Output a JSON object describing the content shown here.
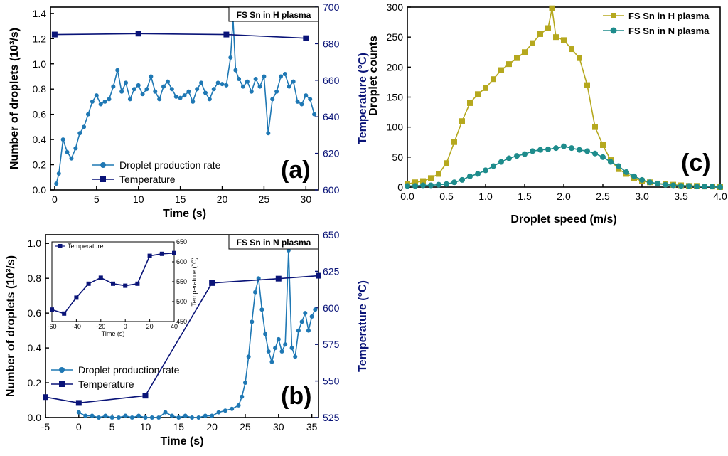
{
  "chart_data": [
    {
      "id": "a",
      "type": "line",
      "panel_label": "(a)",
      "title_box": "FS Sn in H plasma",
      "xlabel": "Time (s)",
      "ylabel_left": "Number of droplets (10³/s)",
      "ylabel_right": "Temperature (°C)",
      "xlim": [
        -0.5,
        31.5
      ],
      "ylim_left": [
        0,
        1.45
      ],
      "ylim_right": [
        600,
        700
      ],
      "xticks": [
        "0",
        "5",
        "10",
        "15",
        "20",
        "25",
        "30"
      ],
      "yticks_left": [
        "0.0",
        "0.2",
        "0.4",
        "0.6",
        "0.8",
        "1.0",
        "1.2",
        "1.4"
      ],
      "yticks_right": [
        "600",
        "620",
        "640",
        "660",
        "680",
        "700"
      ],
      "legend": [
        "Droplet production rate",
        "Temperature"
      ],
      "series": [
        {
          "name": "Droplet production rate",
          "axis": "left",
          "color": "#1f78b4",
          "x": [
            0.2,
            0.5,
            1,
            1.5,
            2,
            2.5,
            3,
            3.5,
            4,
            4.5,
            5,
            5.5,
            6,
            6.5,
            7,
            7.5,
            8,
            8.5,
            9,
            9.5,
            10,
            10.5,
            11,
            11.5,
            12,
            12.5,
            13,
            13.5,
            14,
            14.5,
            15,
            15.5,
            16,
            16.5,
            17,
            17.5,
            18,
            18.5,
            19,
            19.5,
            20,
            20.5,
            21,
            21.3,
            21.6,
            22,
            22.5,
            23,
            23.5,
            24,
            24.5,
            25,
            25.5,
            26,
            26.5,
            27,
            27.5,
            28,
            28.5,
            29,
            29.5,
            30,
            30.5,
            31
          ],
          "y": [
            0.05,
            0.13,
            0.4,
            0.3,
            0.25,
            0.33,
            0.45,
            0.5,
            0.6,
            0.7,
            0.75,
            0.68,
            0.7,
            0.72,
            0.82,
            0.95,
            0.78,
            0.85,
            0.72,
            0.8,
            0.83,
            0.76,
            0.8,
            0.9,
            0.78,
            0.72,
            0.82,
            0.86,
            0.8,
            0.74,
            0.73,
            0.75,
            0.78,
            0.7,
            0.8,
            0.85,
            0.77,
            0.72,
            0.8,
            0.85,
            0.84,
            0.83,
            1.05,
            1.36,
            0.95,
            0.88,
            0.82,
            0.86,
            0.78,
            0.88,
            0.82,
            0.9,
            0.45,
            0.72,
            0.78,
            0.9,
            0.92,
            0.82,
            0.86,
            0.7,
            0.68,
            0.75,
            0.72,
            0.6
          ]
        },
        {
          "name": "Temperature",
          "axis": "right",
          "color": "#0a1478",
          "x": [
            0,
            10,
            20.5,
            30
          ],
          "y": [
            685,
            685.5,
            685,
            683
          ]
        }
      ]
    },
    {
      "id": "b",
      "type": "line",
      "panel_label": "(b)",
      "title_box": "FS Sn in N plasma",
      "xlabel": "Time (s)",
      "ylabel_left": "Number of droplets (10³/s)",
      "ylabel_right": "Temperature (°C)",
      "xlim": [
        -5,
        36
      ],
      "ylim_left": [
        0,
        1.05
      ],
      "ylim_right": [
        525,
        650
      ],
      "xticks": [
        "-5",
        "0",
        "5",
        "10",
        "15",
        "20",
        "25",
        "30",
        "35"
      ],
      "yticks_left": [
        "0.0",
        "0.2",
        "0.4",
        "0.6",
        "0.8",
        "1.0"
      ],
      "yticks_right": [
        "525",
        "550",
        "575",
        "600",
        "625",
        "650"
      ],
      "legend": [
        "Droplet production rate",
        "Temperature"
      ],
      "series": [
        {
          "name": "Droplet production rate",
          "axis": "left",
          "color": "#1f78b4",
          "x": [
            0,
            1,
            2,
            3,
            4,
            5,
            6,
            7,
            8,
            9,
            10,
            11,
            12,
            13,
            14,
            15,
            16,
            17,
            18,
            19,
            20,
            21,
            22,
            23,
            24,
            24.5,
            25,
            25.5,
            26,
            26.5,
            27,
            27.5,
            28,
            28.5,
            29,
            29.5,
            30,
            30.5,
            31,
            31.5,
            32,
            32.5,
            33,
            33.5,
            34,
            34.5,
            35,
            35.5
          ],
          "y": [
            0.03,
            0.01,
            0.01,
            0.0,
            0.01,
            0.0,
            0.0,
            0.01,
            0.0,
            0.01,
            0.0,
            0.0,
            0.0,
            0.03,
            0.01,
            0.0,
            0.01,
            0.0,
            0.0,
            0.01,
            0.01,
            0.03,
            0.04,
            0.05,
            0.07,
            0.12,
            0.2,
            0.35,
            0.55,
            0.72,
            0.8,
            0.62,
            0.48,
            0.38,
            0.32,
            0.4,
            0.45,
            0.38,
            0.42,
            0.96,
            0.4,
            0.35,
            0.5,
            0.55,
            0.6,
            0.5,
            0.58,
            0.62
          ]
        },
        {
          "name": "Temperature",
          "axis": "right",
          "color": "#0a1478",
          "x": [
            -5,
            0,
            10,
            20,
            30,
            36
          ],
          "y": [
            539,
            535,
            540,
            617,
            620,
            622
          ]
        }
      ],
      "inset": {
        "legend": "Temperature",
        "ylabel": "Temperature (°C)",
        "xlabel": "Time (s)",
        "xlim": [
          -60,
          40
        ],
        "ylim": [
          450,
          650
        ],
        "xticks": [
          "-60",
          "-40",
          "-20",
          "0",
          "20",
          "40"
        ],
        "yticks": [
          "450",
          "500",
          "550",
          "600",
          "650"
        ],
        "x": [
          -60,
          -50,
          -40,
          -30,
          -20,
          -10,
          0,
          10,
          20,
          30,
          40
        ],
        "y": [
          480,
          470,
          510,
          545,
          560,
          545,
          540,
          545,
          615,
          620,
          622
        ]
      }
    },
    {
      "id": "c",
      "type": "line",
      "panel_label": "(c)",
      "xlabel": "Droplet speed (m/s)",
      "ylabel": "Droplet counts",
      "xlim": [
        0,
        4
      ],
      "ylim": [
        0,
        300
      ],
      "xticks": [
        "0.0",
        "0.5",
        "1.0",
        "1.5",
        "2.0",
        "2.5",
        "3.0",
        "3.5",
        "4.0"
      ],
      "yticks": [
        "0",
        "50",
        "100",
        "150",
        "200",
        "250",
        "300"
      ],
      "legend": [
        "FS Sn in H plasma",
        "FS Sn in N plasma"
      ],
      "series": [
        {
          "name": "FS Sn in H plasma",
          "color": "#b5a81e",
          "x": [
            0,
            0.1,
            0.2,
            0.3,
            0.4,
            0.5,
            0.6,
            0.7,
            0.8,
            0.9,
            1.0,
            1.1,
            1.2,
            1.3,
            1.4,
            1.5,
            1.6,
            1.7,
            1.8,
            1.85,
            1.9,
            2.0,
            2.1,
            2.2,
            2.3,
            2.4,
            2.5,
            2.6,
            2.7,
            2.8,
            2.9,
            3.0,
            3.1,
            3.2,
            3.3,
            3.4,
            3.5,
            3.6,
            3.7,
            3.8,
            3.9,
            4.0
          ],
          "y": [
            5,
            8,
            10,
            15,
            22,
            40,
            75,
            110,
            140,
            155,
            165,
            180,
            195,
            205,
            215,
            225,
            240,
            255,
            265,
            298,
            250,
            245,
            230,
            215,
            170,
            100,
            70,
            45,
            30,
            22,
            15,
            10,
            8,
            6,
            5,
            4,
            3,
            2,
            2,
            1,
            1,
            0
          ]
        },
        {
          "name": "FS Sn in N plasma",
          "color": "#1e8c8c",
          "x": [
            0,
            0.1,
            0.2,
            0.3,
            0.4,
            0.5,
            0.6,
            0.7,
            0.8,
            0.9,
            1.0,
            1.1,
            1.2,
            1.3,
            1.4,
            1.5,
            1.6,
            1.7,
            1.8,
            1.9,
            2.0,
            2.1,
            2.2,
            2.3,
            2.4,
            2.5,
            2.6,
            2.7,
            2.8,
            2.9,
            3.0,
            3.1,
            3.2,
            3.3,
            3.4,
            3.5,
            3.6,
            3.7,
            3.8,
            3.9,
            4.0
          ],
          "y": [
            2,
            2,
            3,
            3,
            4,
            5,
            8,
            12,
            18,
            22,
            28,
            35,
            42,
            48,
            52,
            55,
            60,
            62,
            63,
            65,
            68,
            65,
            62,
            60,
            56,
            50,
            42,
            35,
            25,
            18,
            12,
            8,
            6,
            4,
            3,
            2,
            2,
            1,
            1,
            1,
            0
          ]
        }
      ]
    }
  ]
}
